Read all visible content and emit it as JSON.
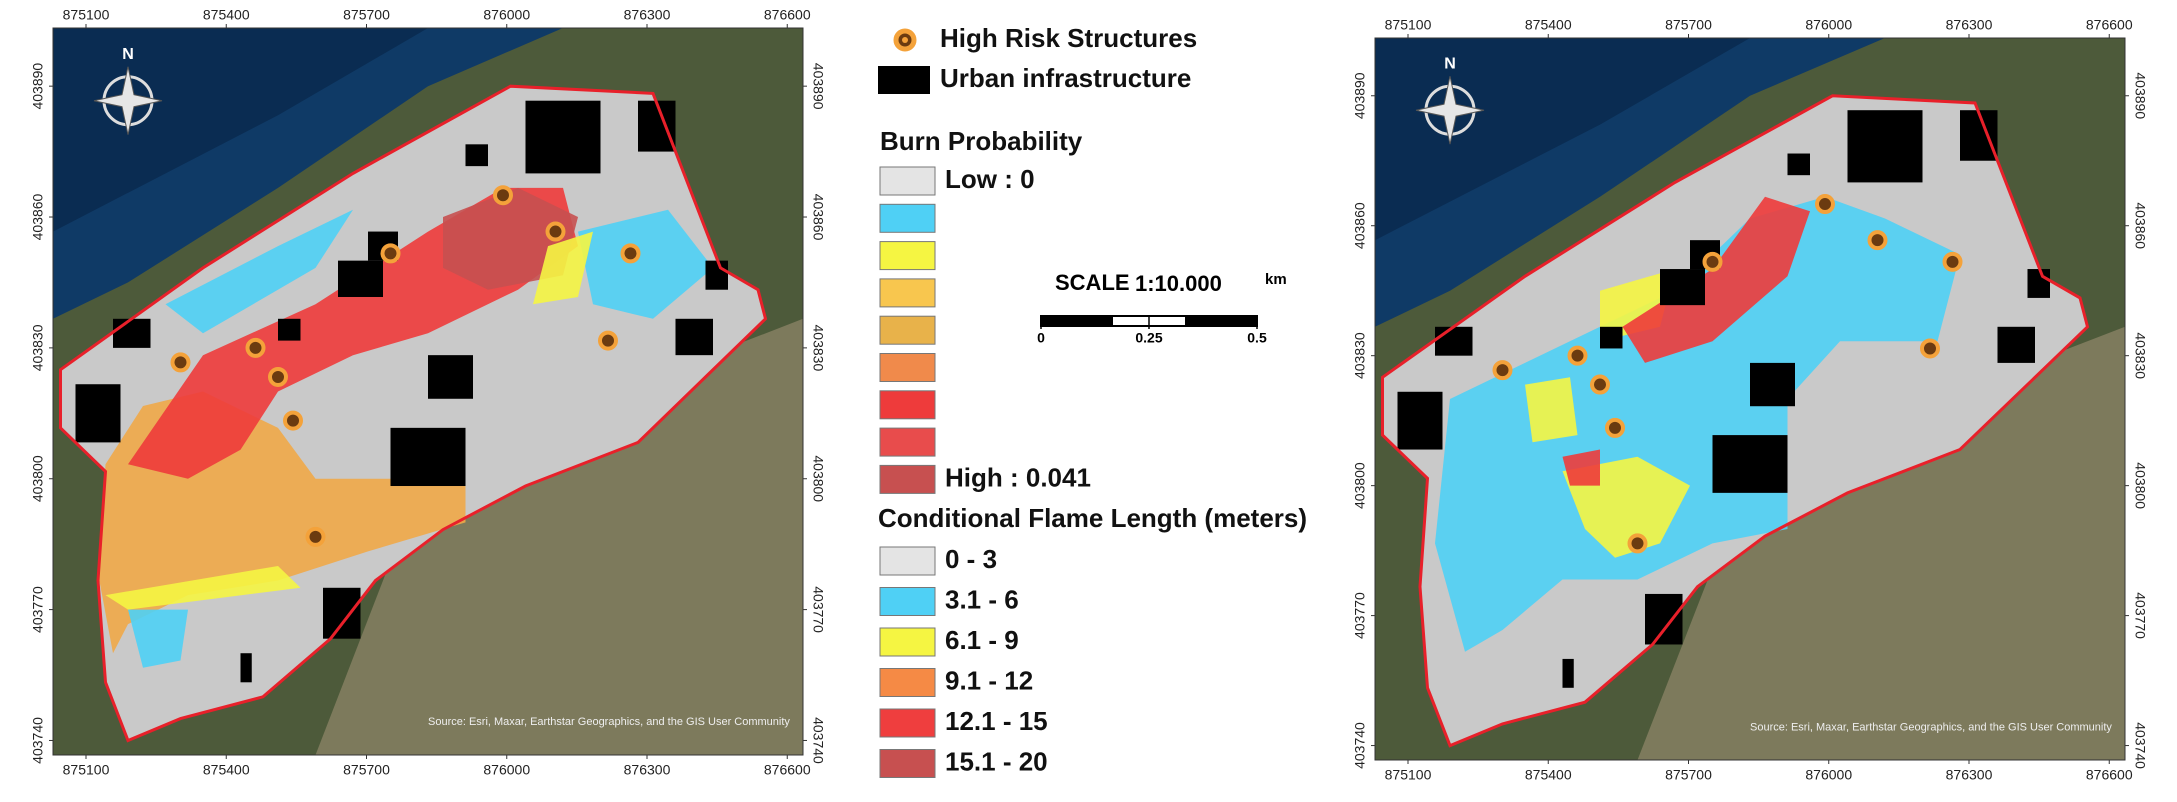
{
  "maps": [
    {
      "x_ticks": [
        875100,
        875400,
        875700,
        876000,
        876300,
        876600
      ],
      "y_ticks": [
        403890,
        403860,
        403830,
        403800,
        403770,
        403740
      ],
      "north_label": "N",
      "attribution": "Source: Esri, Maxar, Earthstar Geographics, and the GIS User Community"
    },
    {
      "x_ticks": [
        875100,
        875400,
        875700,
        876000,
        876300,
        876600
      ],
      "y_ticks": [
        403890,
        403860,
        403830,
        403800,
        403770,
        403740
      ],
      "north_label": "N",
      "attribution": "Source: Esri, Maxar, Earthstar Geographics, and the GIS User Community"
    }
  ],
  "legend": {
    "high_risk": "High Risk Structures",
    "urban": "Urban infrastructure",
    "burn_title": "Burn Probability",
    "burn_items": [
      {
        "label": "Low : 0",
        "color": "#e4e4e4"
      },
      {
        "label": null,
        "color": "#4fd0f5"
      },
      {
        "label": null,
        "color": "#f5f542"
      },
      {
        "label": null,
        "color": "#f8c64e"
      },
      {
        "label": null,
        "color": "#e8b24a"
      },
      {
        "label": null,
        "color": "#f08a4b"
      },
      {
        "label": null,
        "color": "#ee3b3b"
      },
      {
        "label": null,
        "color": "#e84c4c"
      },
      {
        "label": "High : 0.041",
        "color": "#c75050"
      }
    ],
    "flame_title": "Conditional Flame Length (meters)",
    "flame_items": [
      {
        "label": "0 - 3",
        "color": "#e4e4e4"
      },
      {
        "label": "3.1 - 6",
        "color": "#4fd0f5"
      },
      {
        "label": "6.1 - 9",
        "color": "#f5f542"
      },
      {
        "label": "9.1 - 12",
        "color": "#f58a45"
      },
      {
        "label": "12.1 - 15",
        "color": "#ef3e3e"
      },
      {
        "label": "15.1 - 20",
        "color": "#c75050"
      }
    ]
  },
  "scale": {
    "label": "SCALE",
    "ratio": "1:10.000",
    "unit": "km",
    "ticks": [
      0,
      0.25,
      0.5
    ]
  }
}
